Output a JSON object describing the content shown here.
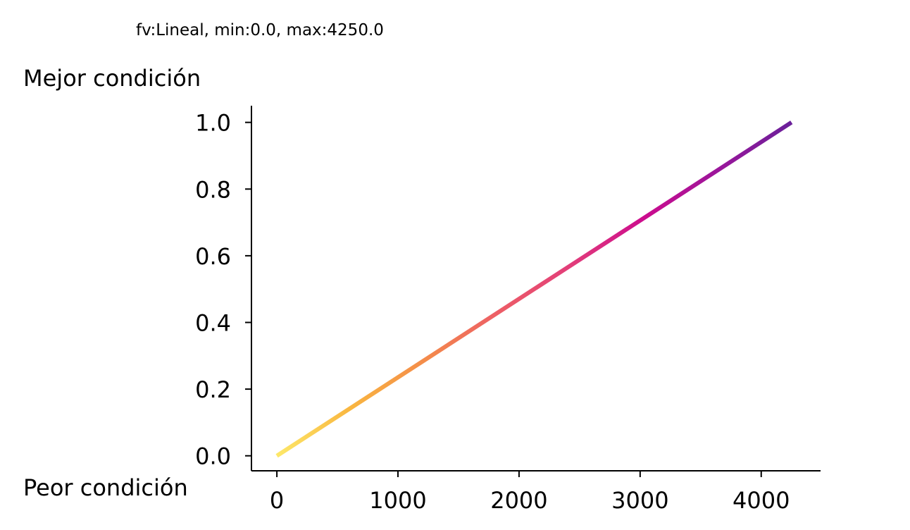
{
  "chart_data": {
    "type": "line",
    "title": "fv:Lineal, min:0.0, max:4250.0",
    "xlabel": "",
    "ylabel": "",
    "annotations": {
      "top_left": "Mejor condición",
      "bottom_left": "Peor condición"
    },
    "xlim": [
      -210,
      4490
    ],
    "ylim": [
      -0.045,
      1.05
    ],
    "x_ticks": [
      0,
      1000,
      2000,
      3000,
      4000
    ],
    "y_ticks": [
      0.0,
      0.2,
      0.4,
      0.6,
      0.8,
      1.0
    ],
    "x_tick_labels": [
      "0",
      "1000",
      "2000",
      "3000",
      "4000"
    ],
    "y_tick_labels": [
      "0.0",
      "0.2",
      "0.4",
      "0.6",
      "0.8",
      "1.0"
    ],
    "series": [
      {
        "x": [
          0,
          4250
        ],
        "y": [
          0.0,
          1.0
        ]
      }
    ],
    "colormap": "plasma_r",
    "gradient_colors": [
      "#fde869",
      "#f9b640",
      "#f48c4a",
      "#ed5e66",
      "#e23d7a",
      "#cc0c8e",
      "#9b169b",
      "#6a209a"
    ],
    "grid": false,
    "spines": [
      "left",
      "bottom"
    ]
  }
}
